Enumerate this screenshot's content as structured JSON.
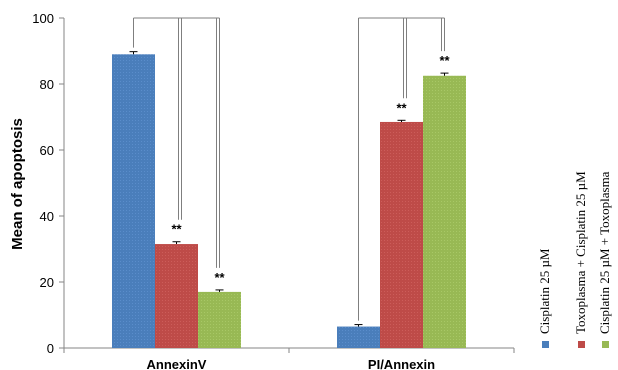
{
  "chart_data": {
    "type": "bar",
    "categories": [
      "AnnexinV",
      "PI/Annexin"
    ],
    "series": [
      {
        "name": "Cisplatin 25 µM",
        "values": [
          89,
          6.5
        ],
        "errors": [
          0.8,
          0.6
        ],
        "significance": [
          "",
          ""
        ],
        "color": "#4a7ebb"
      },
      {
        "name": "Toxoplasma + Cisplatin 25 µM",
        "values": [
          31.5,
          68.5
        ],
        "errors": [
          0.7,
          0.5
        ],
        "significance": [
          "**",
          "**"
        ],
        "color": "#be4b48"
      },
      {
        "name": "Cisplatin 25 µM + Toxoplasma",
        "values": [
          17,
          82.5
        ],
        "errors": [
          0.6,
          0.8
        ],
        "significance": [
          "**",
          "**"
        ],
        "color": "#98b954"
      }
    ],
    "ylabel": "Mean of apoptosis",
    "xlabel": "",
    "ylim": [
      0,
      100
    ],
    "yticks": [
      0,
      20,
      40,
      60,
      80,
      100
    ],
    "grid": false,
    "legend_placement": "right, rotated vertical"
  }
}
